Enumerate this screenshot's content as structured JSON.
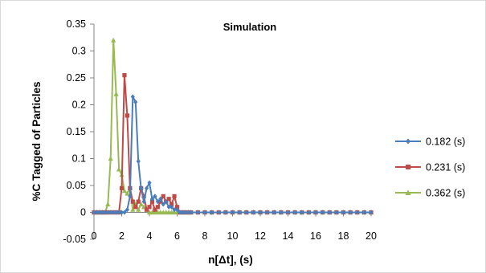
{
  "chart_data": {
    "type": "line",
    "title": "Simulation",
    "xlabel": "n[Δt], (s)",
    "ylabel": "%C Tagged of Particles",
    "xlim": [
      0,
      20
    ],
    "ylim": [
      -0.05,
      0.35
    ],
    "xticks": [
      "0",
      "2",
      "4",
      "6",
      "8",
      "10",
      "12",
      "14",
      "16",
      "18",
      "20"
    ],
    "yticks": [
      "-0.05",
      "0",
      "0.05",
      "0.1",
      "0.15",
      "0.2",
      "0.25",
      "0.3",
      "0.35"
    ],
    "grid": false,
    "legend_position": "right",
    "series": [
      {
        "name": "0.182 (s)",
        "color": "#4a7ebb",
        "marker": "diamond",
        "x": [
          0,
          0.2,
          0.4,
          0.6,
          0.8,
          1.0,
          1.2,
          1.4,
          1.6,
          1.8,
          2.0,
          2.2,
          2.4,
          2.6,
          2.8,
          3.0,
          3.2,
          3.4,
          3.6,
          3.8,
          4.0,
          4.2,
          4.4,
          4.6,
          4.8,
          5.0,
          5.2,
          5.4,
          5.6,
          5.8,
          6.0,
          6.2,
          6.4,
          6.6,
          6.8,
          7.0,
          7.5,
          8,
          8.5,
          9,
          9.5,
          10,
          10.5,
          11,
          11.5,
          12,
          12.5,
          13,
          13.5,
          14,
          14.5,
          15,
          15.5,
          16,
          16.5,
          17,
          17.5,
          18,
          18.5,
          19,
          19.5,
          20
        ],
        "y": [
          0,
          0,
          0,
          0,
          0,
          0,
          0,
          0,
          0,
          0,
          0,
          0,
          0.005,
          0.03,
          0.215,
          0.205,
          0.095,
          0.045,
          0.02,
          0.045,
          0.055,
          0.025,
          0.03,
          0.02,
          0.025,
          0.015,
          0.02,
          0.01,
          0.01,
          0.005,
          0.005,
          0,
          0,
          0,
          0,
          0,
          0,
          0,
          0,
          0,
          0,
          0,
          0,
          0,
          0,
          0,
          0,
          0,
          0,
          0,
          0,
          0,
          0,
          0,
          0,
          0,
          0,
          0,
          0,
          0,
          0,
          0
        ]
      },
      {
        "name": "0.231 (s)",
        "color": "#be4b48",
        "marker": "square",
        "x": [
          0,
          0.2,
          0.4,
          0.6,
          0.8,
          1.0,
          1.2,
          1.4,
          1.6,
          1.8,
          2.0,
          2.2,
          2.4,
          2.6,
          2.8,
          3.0,
          3.2,
          3.4,
          3.6,
          3.8,
          4.0,
          4.2,
          4.4,
          4.6,
          4.8,
          5.0,
          5.2,
          5.4,
          5.6,
          5.8,
          6.0,
          6.2,
          6.4,
          6.6,
          6.8,
          7.0,
          7.5,
          8,
          8.5,
          9,
          9.5,
          10,
          10.5,
          11,
          11.5,
          12,
          12.5,
          13,
          13.5,
          14,
          14.5,
          15,
          15.5,
          16,
          16.5,
          17,
          17.5,
          18,
          18.5,
          19,
          19.5,
          20
        ],
        "y": [
          0,
          0,
          0,
          0,
          0,
          0,
          0,
          0,
          0,
          0,
          0.045,
          0.255,
          0.18,
          0.045,
          0.02,
          0.01,
          0.02,
          0.045,
          0.03,
          0.005,
          0.01,
          0.02,
          0.005,
          0.01,
          0.02,
          0.03,
          0.02,
          0.025,
          0.015,
          0.03,
          0.01,
          0,
          0,
          0,
          0,
          0,
          0,
          0,
          0,
          0,
          0,
          0,
          0,
          0,
          0,
          0,
          0,
          0,
          0,
          0,
          0,
          0,
          0,
          0,
          0,
          0,
          0,
          0,
          0,
          0,
          0,
          0
        ]
      },
      {
        "name": "0.362 (s)",
        "color": "#98b954",
        "marker": "triangle",
        "x": [
          0,
          0.2,
          0.4,
          0.6,
          0.8,
          1.0,
          1.2,
          1.4,
          1.6,
          1.8,
          2.0,
          2.2,
          2.4,
          2.6,
          2.8,
          3.0,
          3.2,
          3.4,
          3.6,
          3.8,
          4.0,
          4.2,
          4.4,
          4.6,
          4.8,
          5.0,
          5.2,
          5.4,
          5.6,
          5.8,
          6.0,
          6.2,
          6.4,
          6.6,
          6.8,
          7.0,
          7.5,
          8,
          8.5,
          9,
          9.5,
          10,
          10.5,
          11,
          11.5,
          12,
          12.5,
          13,
          13.5,
          14,
          14.5,
          15,
          15.5,
          16,
          16.5,
          17,
          17.5,
          18,
          18.5,
          19,
          19.5,
          20
        ],
        "y": [
          0,
          0,
          0,
          0,
          0,
          0.015,
          0.1,
          0.32,
          0.22,
          0.08,
          0.07,
          0.04,
          0.035,
          0.045,
          0.005,
          0.015,
          0.005,
          0.015,
          0.01,
          0.005,
          0,
          0,
          0,
          0,
          0,
          0,
          0,
          0,
          0,
          0,
          0,
          0,
          0,
          0,
          0,
          0,
          0,
          0,
          0,
          0,
          0,
          0,
          0,
          0,
          0,
          0,
          0,
          0,
          0,
          0,
          0,
          0,
          0,
          0,
          0,
          0,
          0,
          0,
          0,
          0,
          0,
          0
        ]
      }
    ]
  }
}
